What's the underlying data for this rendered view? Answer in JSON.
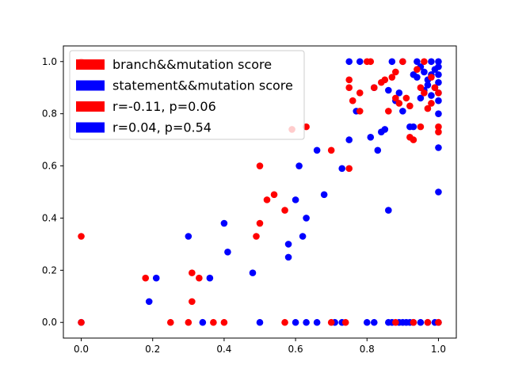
{
  "chart_data": {
    "type": "scatter",
    "title": "",
    "xlabel": "",
    "ylabel": "",
    "xlim": [
      -0.05,
      1.05
    ],
    "ylim": [
      -0.06,
      1.06
    ],
    "x_ticks": [
      "0.0",
      "0.2",
      "0.4",
      "0.6",
      "0.8",
      "1.0"
    ],
    "y_ticks": [
      "0.0",
      "0.2",
      "0.4",
      "0.6",
      "0.8",
      "1.0"
    ],
    "grid": false,
    "legend_position": "top-left",
    "legend": [
      {
        "label": "branch&&mutation score",
        "color": "#ff0000"
      },
      {
        "label": "statement&&mutation score",
        "color": "#0000ff"
      },
      {
        "label": "r=-0.11, p=0.06",
        "color": "#ff0000"
      },
      {
        "label": "r=0.04, p=0.54",
        "color": "#0000ff"
      }
    ],
    "series": [
      {
        "name": "branch&&mutation score",
        "color": "#ff0000",
        "points": [
          [
            0.0,
            1.0
          ],
          [
            0.0,
            0.33
          ],
          [
            0.0,
            0.0
          ],
          [
            0.18,
            0.17
          ],
          [
            0.25,
            0.0
          ],
          [
            0.3,
            0.0
          ],
          [
            0.31,
            0.19
          ],
          [
            0.31,
            0.08
          ],
          [
            0.33,
            0.17
          ],
          [
            0.37,
            0.0
          ],
          [
            0.4,
            0.0
          ],
          [
            0.49,
            0.33
          ],
          [
            0.5,
            0.38
          ],
          [
            0.5,
            0.6
          ],
          [
            0.52,
            0.47
          ],
          [
            0.54,
            0.49
          ],
          [
            0.57,
            0.43
          ],
          [
            0.57,
            0.0
          ],
          [
            0.59,
            0.74
          ],
          [
            0.63,
            0.75
          ],
          [
            0.7,
            0.0
          ],
          [
            0.7,
            0.66
          ],
          [
            0.74,
            0.0
          ],
          [
            0.75,
            0.59
          ],
          [
            0.75,
            0.93
          ],
          [
            0.75,
            0.9
          ],
          [
            0.76,
            0.85
          ],
          [
            0.78,
            0.88
          ],
          [
            0.78,
            0.81
          ],
          [
            0.8,
            1.0
          ],
          [
            0.81,
            1.0
          ],
          [
            0.82,
            0.9
          ],
          [
            0.84,
            0.92
          ],
          [
            0.85,
            0.93
          ],
          [
            0.86,
            0.81
          ],
          [
            0.87,
            0.94
          ],
          [
            0.88,
            0.96
          ],
          [
            0.88,
            0.86
          ],
          [
            0.88,
            0.0
          ],
          [
            0.89,
            0.84
          ],
          [
            0.9,
            1.0
          ],
          [
            0.91,
            0.86
          ],
          [
            0.92,
            0.83
          ],
          [
            0.92,
            0.71
          ],
          [
            0.93,
            0.7
          ],
          [
            0.93,
            0.0
          ],
          [
            0.94,
            0.97
          ],
          [
            0.95,
            0.9
          ],
          [
            0.95,
            0.75
          ],
          [
            0.96,
            0.88
          ],
          [
            0.96,
            1.0
          ],
          [
            0.97,
            0.82
          ],
          [
            0.97,
            0.0
          ],
          [
            0.98,
            0.94
          ],
          [
            0.98,
            0.84
          ],
          [
            0.99,
            0.9
          ],
          [
            1.0,
            0.88
          ],
          [
            1.0,
            0.75
          ],
          [
            1.0,
            0.73
          ],
          [
            1.0,
            0.0
          ]
        ]
      },
      {
        "name": "statement&&mutation score",
        "color": "#0000ff",
        "points": [
          [
            0.0,
            0.0
          ],
          [
            0.19,
            0.08
          ],
          [
            0.21,
            0.17
          ],
          [
            0.3,
            0.33
          ],
          [
            0.34,
            0.0
          ],
          [
            0.36,
            0.17
          ],
          [
            0.4,
            0.38
          ],
          [
            0.41,
            0.27
          ],
          [
            0.48,
            0.19
          ],
          [
            0.5,
            0.0
          ],
          [
            0.58,
            0.3
          ],
          [
            0.58,
            0.25
          ],
          [
            0.6,
            0.47
          ],
          [
            0.6,
            0.0
          ],
          [
            0.61,
            0.6
          ],
          [
            0.62,
            0.33
          ],
          [
            0.63,
            0.4
          ],
          [
            0.63,
            0.0
          ],
          [
            0.66,
            0.66
          ],
          [
            0.66,
            0.0
          ],
          [
            0.68,
            0.49
          ],
          [
            0.71,
            0.0
          ],
          [
            0.73,
            0.59
          ],
          [
            0.73,
            0.0
          ],
          [
            0.75,
            1.0
          ],
          [
            0.75,
            0.7
          ],
          [
            0.77,
            0.81
          ],
          [
            0.78,
            1.0
          ],
          [
            0.8,
            0.0
          ],
          [
            0.81,
            0.71
          ],
          [
            0.82,
            0.9
          ],
          [
            0.82,
            0.0
          ],
          [
            0.83,
            0.66
          ],
          [
            0.84,
            0.73
          ],
          [
            0.85,
            0.74
          ],
          [
            0.86,
            0.43
          ],
          [
            0.86,
            0.89
          ],
          [
            0.86,
            0.0
          ],
          [
            0.87,
            1.0
          ],
          [
            0.87,
            0.0
          ],
          [
            0.88,
            0.85
          ],
          [
            0.89,
            0.88
          ],
          [
            0.89,
            0.0
          ],
          [
            0.9,
            1.0
          ],
          [
            0.9,
            0.81
          ],
          [
            0.9,
            0.0
          ],
          [
            0.91,
            0.0
          ],
          [
            0.92,
            0.75
          ],
          [
            0.92,
            0.0
          ],
          [
            0.93,
            0.95
          ],
          [
            0.93,
            0.75
          ],
          [
            0.93,
            0.0
          ],
          [
            0.94,
            1.0
          ],
          [
            0.94,
            0.94
          ],
          [
            0.95,
            0.98
          ],
          [
            0.95,
            0.86
          ],
          [
            0.95,
            0.0
          ],
          [
            0.96,
            0.96
          ],
          [
            0.96,
            0.89
          ],
          [
            0.97,
            0.93
          ],
          [
            0.97,
            0.91
          ],
          [
            0.97,
            0.0
          ],
          [
            0.98,
            1.0
          ],
          [
            0.98,
            0.95
          ],
          [
            0.98,
            0.87
          ],
          [
            0.99,
            0.97
          ],
          [
            0.99,
            0.9
          ],
          [
            0.99,
            0.0
          ],
          [
            1.0,
            1.0
          ],
          [
            1.0,
            0.98
          ],
          [
            1.0,
            0.95
          ],
          [
            1.0,
            0.92
          ],
          [
            1.0,
            0.88
          ],
          [
            1.0,
            0.85
          ],
          [
            1.0,
            0.8
          ],
          [
            1.0,
            0.67
          ],
          [
            1.0,
            0.5
          ],
          [
            1.0,
            0.0
          ]
        ]
      }
    ]
  }
}
